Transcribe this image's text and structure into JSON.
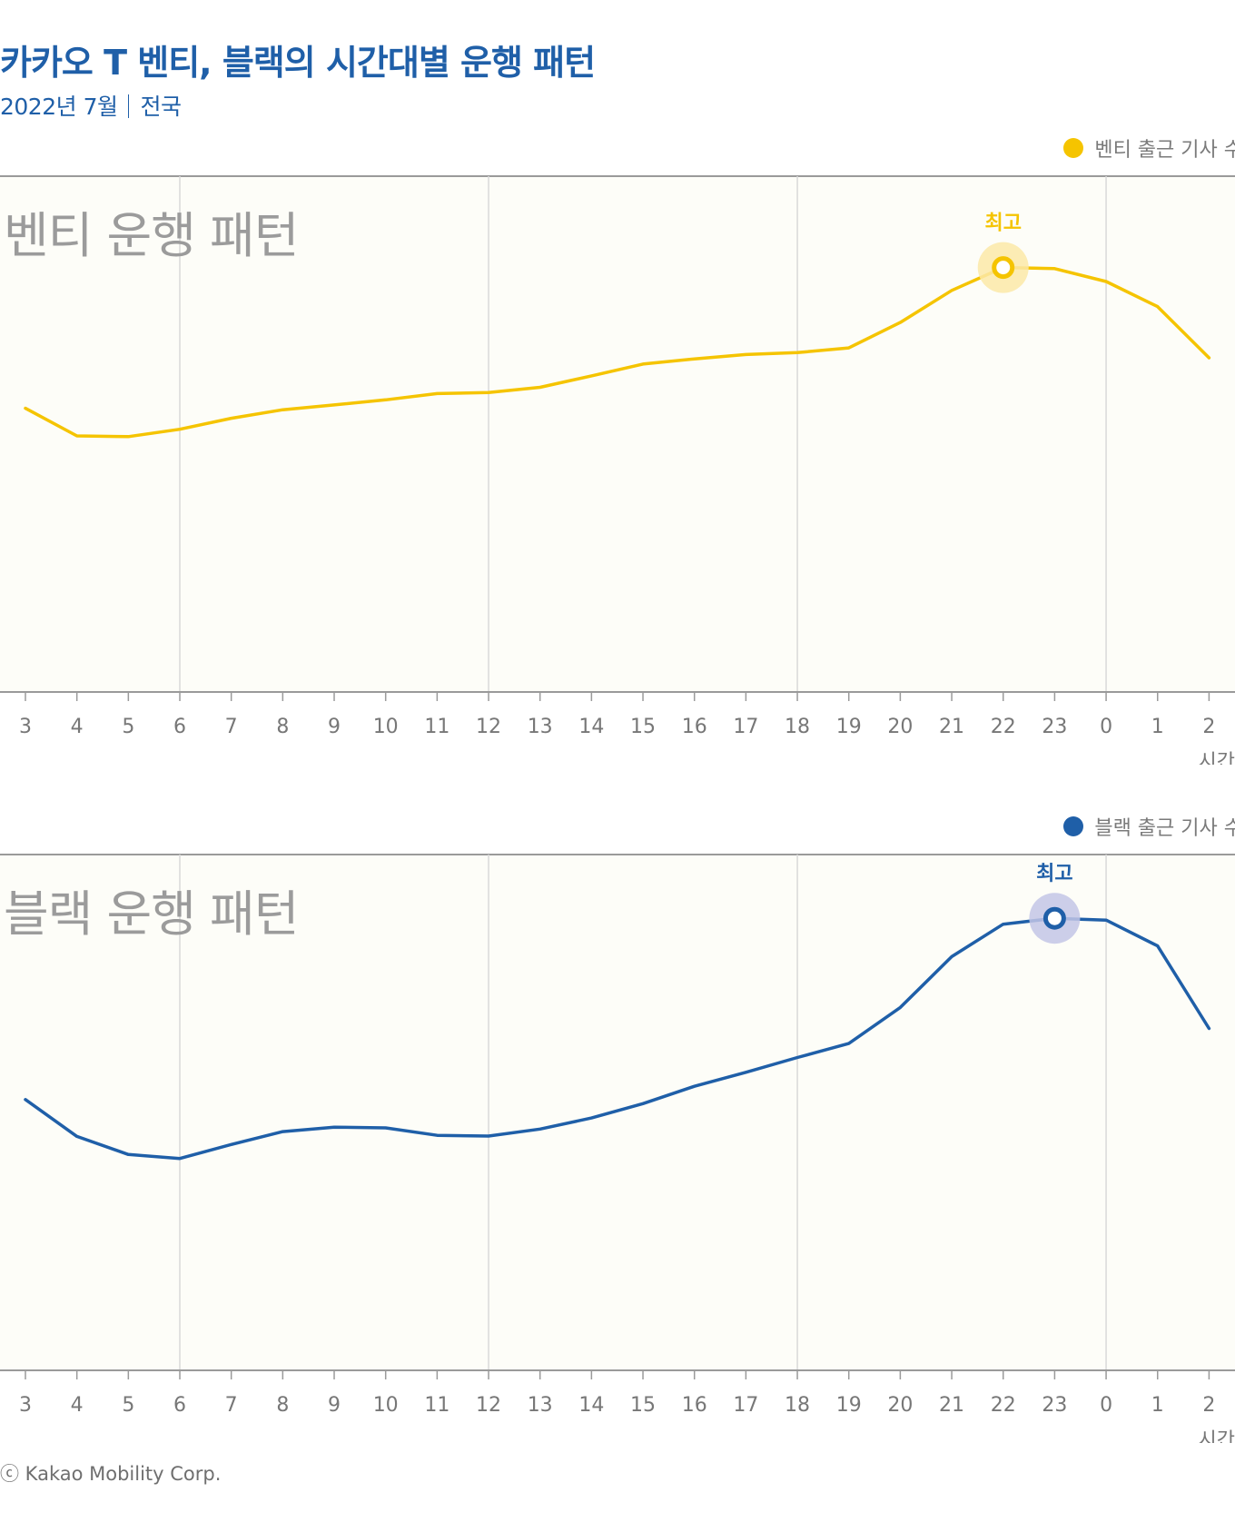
{
  "header": {
    "title": "카카오 T 벤티, 블랙의 시간대별 운행 패턴",
    "subtitle_date": "2022년 7월",
    "subtitle_region": "전국"
  },
  "footer": {
    "copyright": "ⓒ Kakao Mobility Corp."
  },
  "colors": {
    "venti": "#f5c400",
    "venti_halo": "#fbe9a8",
    "black": "#1f5fa8",
    "black_halo": "#c3c5e6",
    "panel_bg": "#fdfdf8"
  },
  "chart_data": [
    {
      "type": "line",
      "panel_label": "벤티 운행 패턴",
      "legend": "벤티 출근 기사 수",
      "peak_label": "최고",
      "peak_index": 19,
      "xlabel": "시간",
      "categories": [
        "3",
        "4",
        "5",
        "6",
        "7",
        "8",
        "9",
        "10",
        "11",
        "12",
        "13",
        "14",
        "15",
        "16",
        "17",
        "18",
        "19",
        "20",
        "21",
        "22",
        "23",
        "0",
        "1",
        "2"
      ],
      "series": [
        {
          "name": "벤티 출근 기사 수",
          "values": [
            37,
            29.5,
            29.3,
            31.3,
            34.3,
            36.6,
            37.9,
            39.3,
            41,
            41.3,
            42.7,
            45.8,
            49,
            50.4,
            51.6,
            52.1,
            53.4,
            60.3,
            69,
            75.2,
            74.9,
            71.4,
            64.6,
            50.7
          ]
        }
      ],
      "ylim": [
        -40,
        100
      ],
      "gridlines_x": [
        "6",
        "12",
        "18",
        "0"
      ]
    },
    {
      "type": "line",
      "panel_label": "블랙 운행 패턴",
      "legend": "블랙 출근 기사 수",
      "peak_label": "최고",
      "peak_index": 20,
      "xlabel": "시간",
      "categories": [
        "3",
        "4",
        "5",
        "6",
        "7",
        "8",
        "9",
        "10",
        "11",
        "12",
        "13",
        "14",
        "15",
        "16",
        "17",
        "18",
        "19",
        "20",
        "21",
        "22",
        "23",
        "0",
        "1",
        "2"
      ],
      "series": [
        {
          "name": "블랙 출근 기사 수",
          "values": [
            33.5,
            23.5,
            18.6,
            17.5,
            21.3,
            24.8,
            26,
            25.8,
            23.8,
            23.6,
            25.5,
            28.5,
            32.4,
            37.1,
            40.9,
            44.9,
            48.7,
            58.5,
            72.3,
            81.1,
            82.7,
            82.2,
            75.2,
            52.8
          ]
        }
      ],
      "ylim": [
        -40,
        100
      ],
      "gridlines_x": [
        "6",
        "12",
        "18",
        "0"
      ]
    }
  ]
}
